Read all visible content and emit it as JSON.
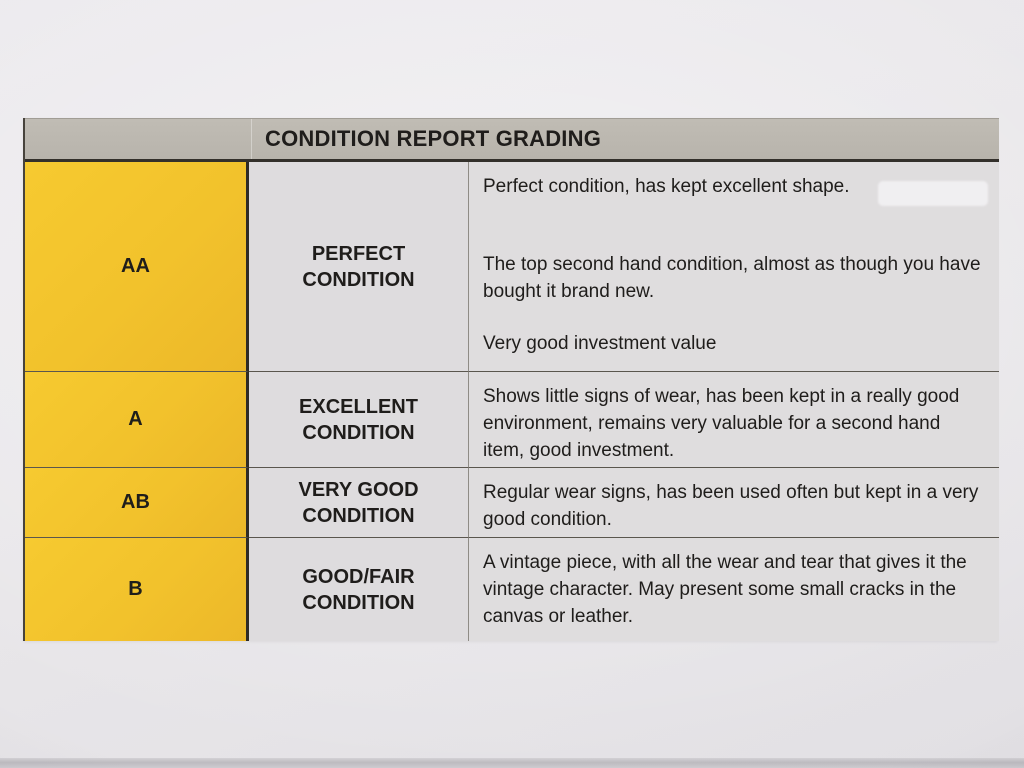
{
  "document": {
    "header": "CONDITION REPORT GRADING",
    "rows": [
      {
        "grade": "AA",
        "label_lines": [
          "PERFECT",
          "CONDITION"
        ],
        "paragraphs": [
          "Perfect condition, has kept excellent shape.",
          "The top second hand condition, almost as though you have bought it brand new.",
          "Very good investment value"
        ]
      },
      {
        "grade": "A",
        "label_lines": [
          "EXCELLENT",
          "CONDITION"
        ],
        "paragraphs": [
          "Shows little signs of wear, has been kept in a really good environment, remains very valuable for a second hand item, good investment."
        ]
      },
      {
        "grade": "AB",
        "label_lines": [
          "VERY GOOD",
          "CONDITION"
        ],
        "paragraphs": [
          "Regular wear signs, has been used often but kept in a very good condition."
        ]
      },
      {
        "grade": "B",
        "label_lines": [
          "GOOD/FAIR",
          "CONDITION"
        ],
        "paragraphs": [
          "A vintage piece, with all the wear and tear that gives it the vintage character. May present some small cracks in the canvas or leather."
        ]
      }
    ],
    "colors": {
      "grade_cell_yellow": "#F2C22C",
      "header_bar_gray": "#BCB8B0",
      "cell_background": "#DEDCDE",
      "paper_background": "#E9E7EA",
      "text": "#1F1D1B",
      "border_dark": "#2E2B26"
    }
  }
}
